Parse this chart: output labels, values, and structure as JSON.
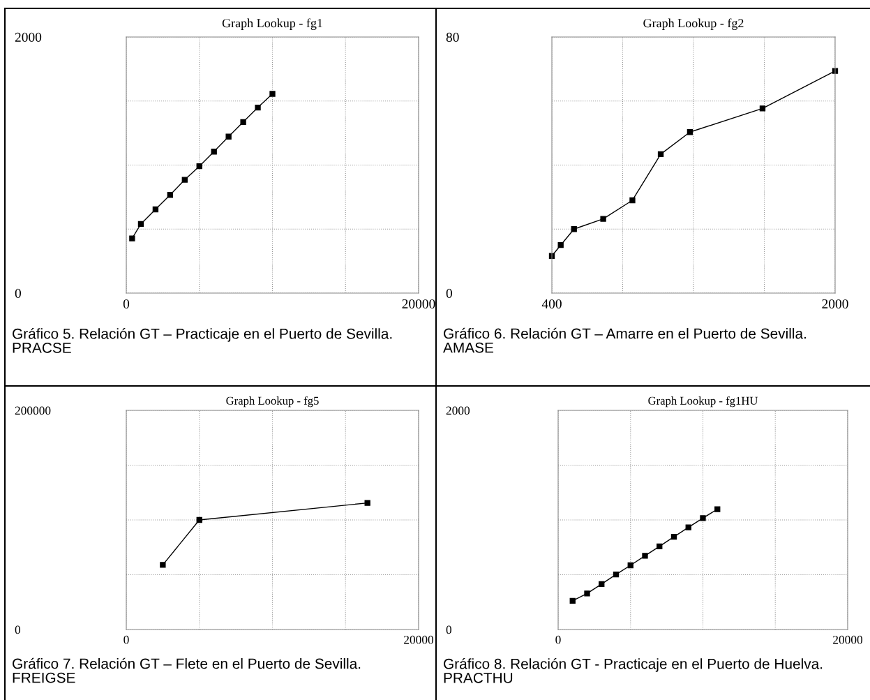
{
  "chart_data": [
    {
      "type": "line",
      "title": "Graph Lookup - fg1",
      "x": [
        400,
        1000,
        2000,
        3000,
        4000,
        5000,
        6000,
        7000,
        8000,
        9000,
        10000
      ],
      "series": [
        {
          "color": "#000000",
          "values": [
            427,
            540,
            654,
            767,
            885,
            991,
            1105,
            1222,
            1336,
            1449,
            1556
          ]
        }
      ],
      "xlim": [
        0,
        20000
      ],
      "xticks": [
        0,
        {
          "value": 5000,
          "label": null
        },
        {
          "value": 10000,
          "label": null
        },
        {
          "value": 15000,
          "label": null
        },
        20000
      ],
      "ylim": [
        0,
        2000
      ],
      "yticks": [
        0,
        {
          "value": 500,
          "label": null
        },
        {
          "value": 1000,
          "label": null
        },
        {
          "value": 1500,
          "label": null
        },
        2000
      ],
      "grid": true,
      "marker": "square",
      "line_style": "solid",
      "annotations": [
        "Gráfico 5. Relación GT – Practicaje en el Puerto de Sevilla. PRACSE"
      ]
    },
    {
      "type": "line",
      "title": "Graph Lookup - fg2",
      "x": [
        400,
        450,
        525,
        690,
        855,
        1015,
        1180,
        1590,
        2000
      ],
      "series": [
        {
          "color": "#000000",
          "values": [
            11.6,
            15.0,
            20.0,
            23.2,
            29.0,
            43.4,
            50.3,
            57.7,
            69.4
          ]
        }
      ],
      "xlim": [
        400,
        2000
      ],
      "xticks": [
        400,
        {
          "value": 800,
          "label": null
        },
        {
          "value": 1200,
          "label": null
        },
        {
          "value": 1600,
          "label": null
        },
        2000
      ],
      "ylim": [
        0,
        80
      ],
      "yticks": [
        0,
        {
          "value": 20,
          "label": null
        },
        {
          "value": 40,
          "label": null
        },
        {
          "value": 60,
          "label": null
        },
        80
      ],
      "grid": true,
      "marker": "square",
      "line_style": "solid",
      "annotations": [
        "Gráfico 6. Relación GT – Amarre en el Puerto de Sevilla. AMASE"
      ]
    },
    {
      "type": "line",
      "title": "Graph Lookup - fg5",
      "x": [
        2500,
        5000,
        16500
      ],
      "series": [
        {
          "color": "#000000",
          "values": [
            59000,
            100000,
            115500
          ]
        }
      ],
      "xlim": [
        0,
        20000
      ],
      "xticks": [
        0,
        {
          "value": 5000,
          "label": null
        },
        {
          "value": 10000,
          "label": null
        },
        {
          "value": 15000,
          "label": null
        },
        20000
      ],
      "ylim": [
        0,
        200000
      ],
      "yticks": [
        0,
        {
          "value": 50000,
          "label": null
        },
        {
          "value": 100000,
          "label": null
        },
        {
          "value": 150000,
          "label": null
        },
        200000
      ],
      "grid": true,
      "marker": "square",
      "line_style": "solid",
      "annotations": [
        "Gráfico 7. Relación GT – Flete en el Puerto de Sevilla. FREIGSE"
      ]
    },
    {
      "type": "line",
      "title": "Graph Lookup - fg1HU",
      "x": [
        1000,
        2000,
        3000,
        4000,
        5000,
        6000,
        7000,
        8000,
        9000,
        10000,
        11000
      ],
      "series": [
        {
          "color": "#000000",
          "values": [
            262,
            329,
            415,
            502,
            586,
            673,
            759,
            846,
            932,
            1017,
            1098
          ]
        }
      ],
      "xlim": [
        0,
        20000
      ],
      "xticks": [
        0,
        {
          "value": 5000,
          "label": null
        },
        {
          "value": 10000,
          "label": null
        },
        {
          "value": 15000,
          "label": null
        },
        20000
      ],
      "ylim": [
        0,
        2000
      ],
      "yticks": [
        0,
        {
          "value": 500,
          "label": null
        },
        {
          "value": 1000,
          "label": null
        },
        {
          "value": 1500,
          "label": null
        },
        2000
      ],
      "grid": true,
      "marker": "square",
      "line_style": "solid",
      "annotations": [
        "Gráfico 8. Relación GT - Practicaje en el Puerto de Huelva. PRACTHU"
      ]
    }
  ]
}
